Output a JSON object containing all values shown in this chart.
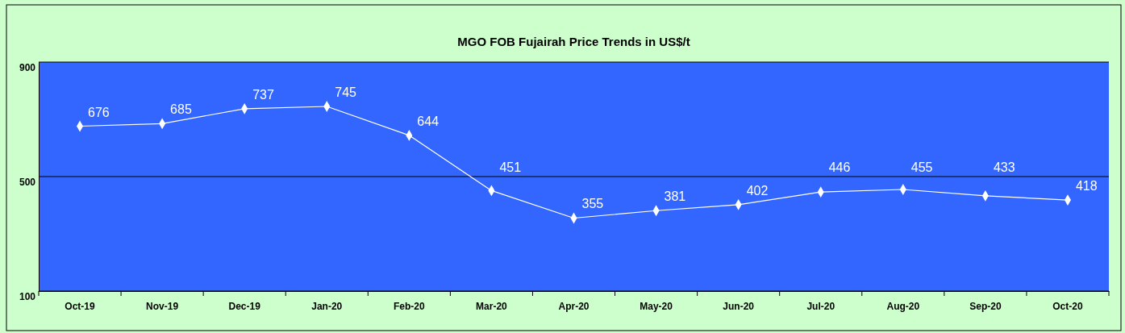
{
  "chart_data": {
    "type": "line",
    "title": "MGO FOB Fujairah Price Trends in US$/t",
    "categories": [
      "Oct-19",
      "Nov-19",
      "Dec-19",
      "Jan-20",
      "Feb-20",
      "Mar-20",
      "Apr-20",
      "May-20",
      "Jun-20",
      "Jul-20",
      "Aug-20",
      "Sep-20",
      "Oct-20"
    ],
    "series": [
      {
        "color": "#ffffff",
        "values": [
          676,
          685,
          737,
          745,
          644,
          451,
          355,
          381,
          402,
          446,
          455,
          433,
          418
        ]
      }
    ],
    "ylim": [
      100,
      900
    ],
    "yticks": [
      100,
      500,
      900
    ],
    "grid": "y",
    "marker": "diamond",
    "data_labels": true
  }
}
